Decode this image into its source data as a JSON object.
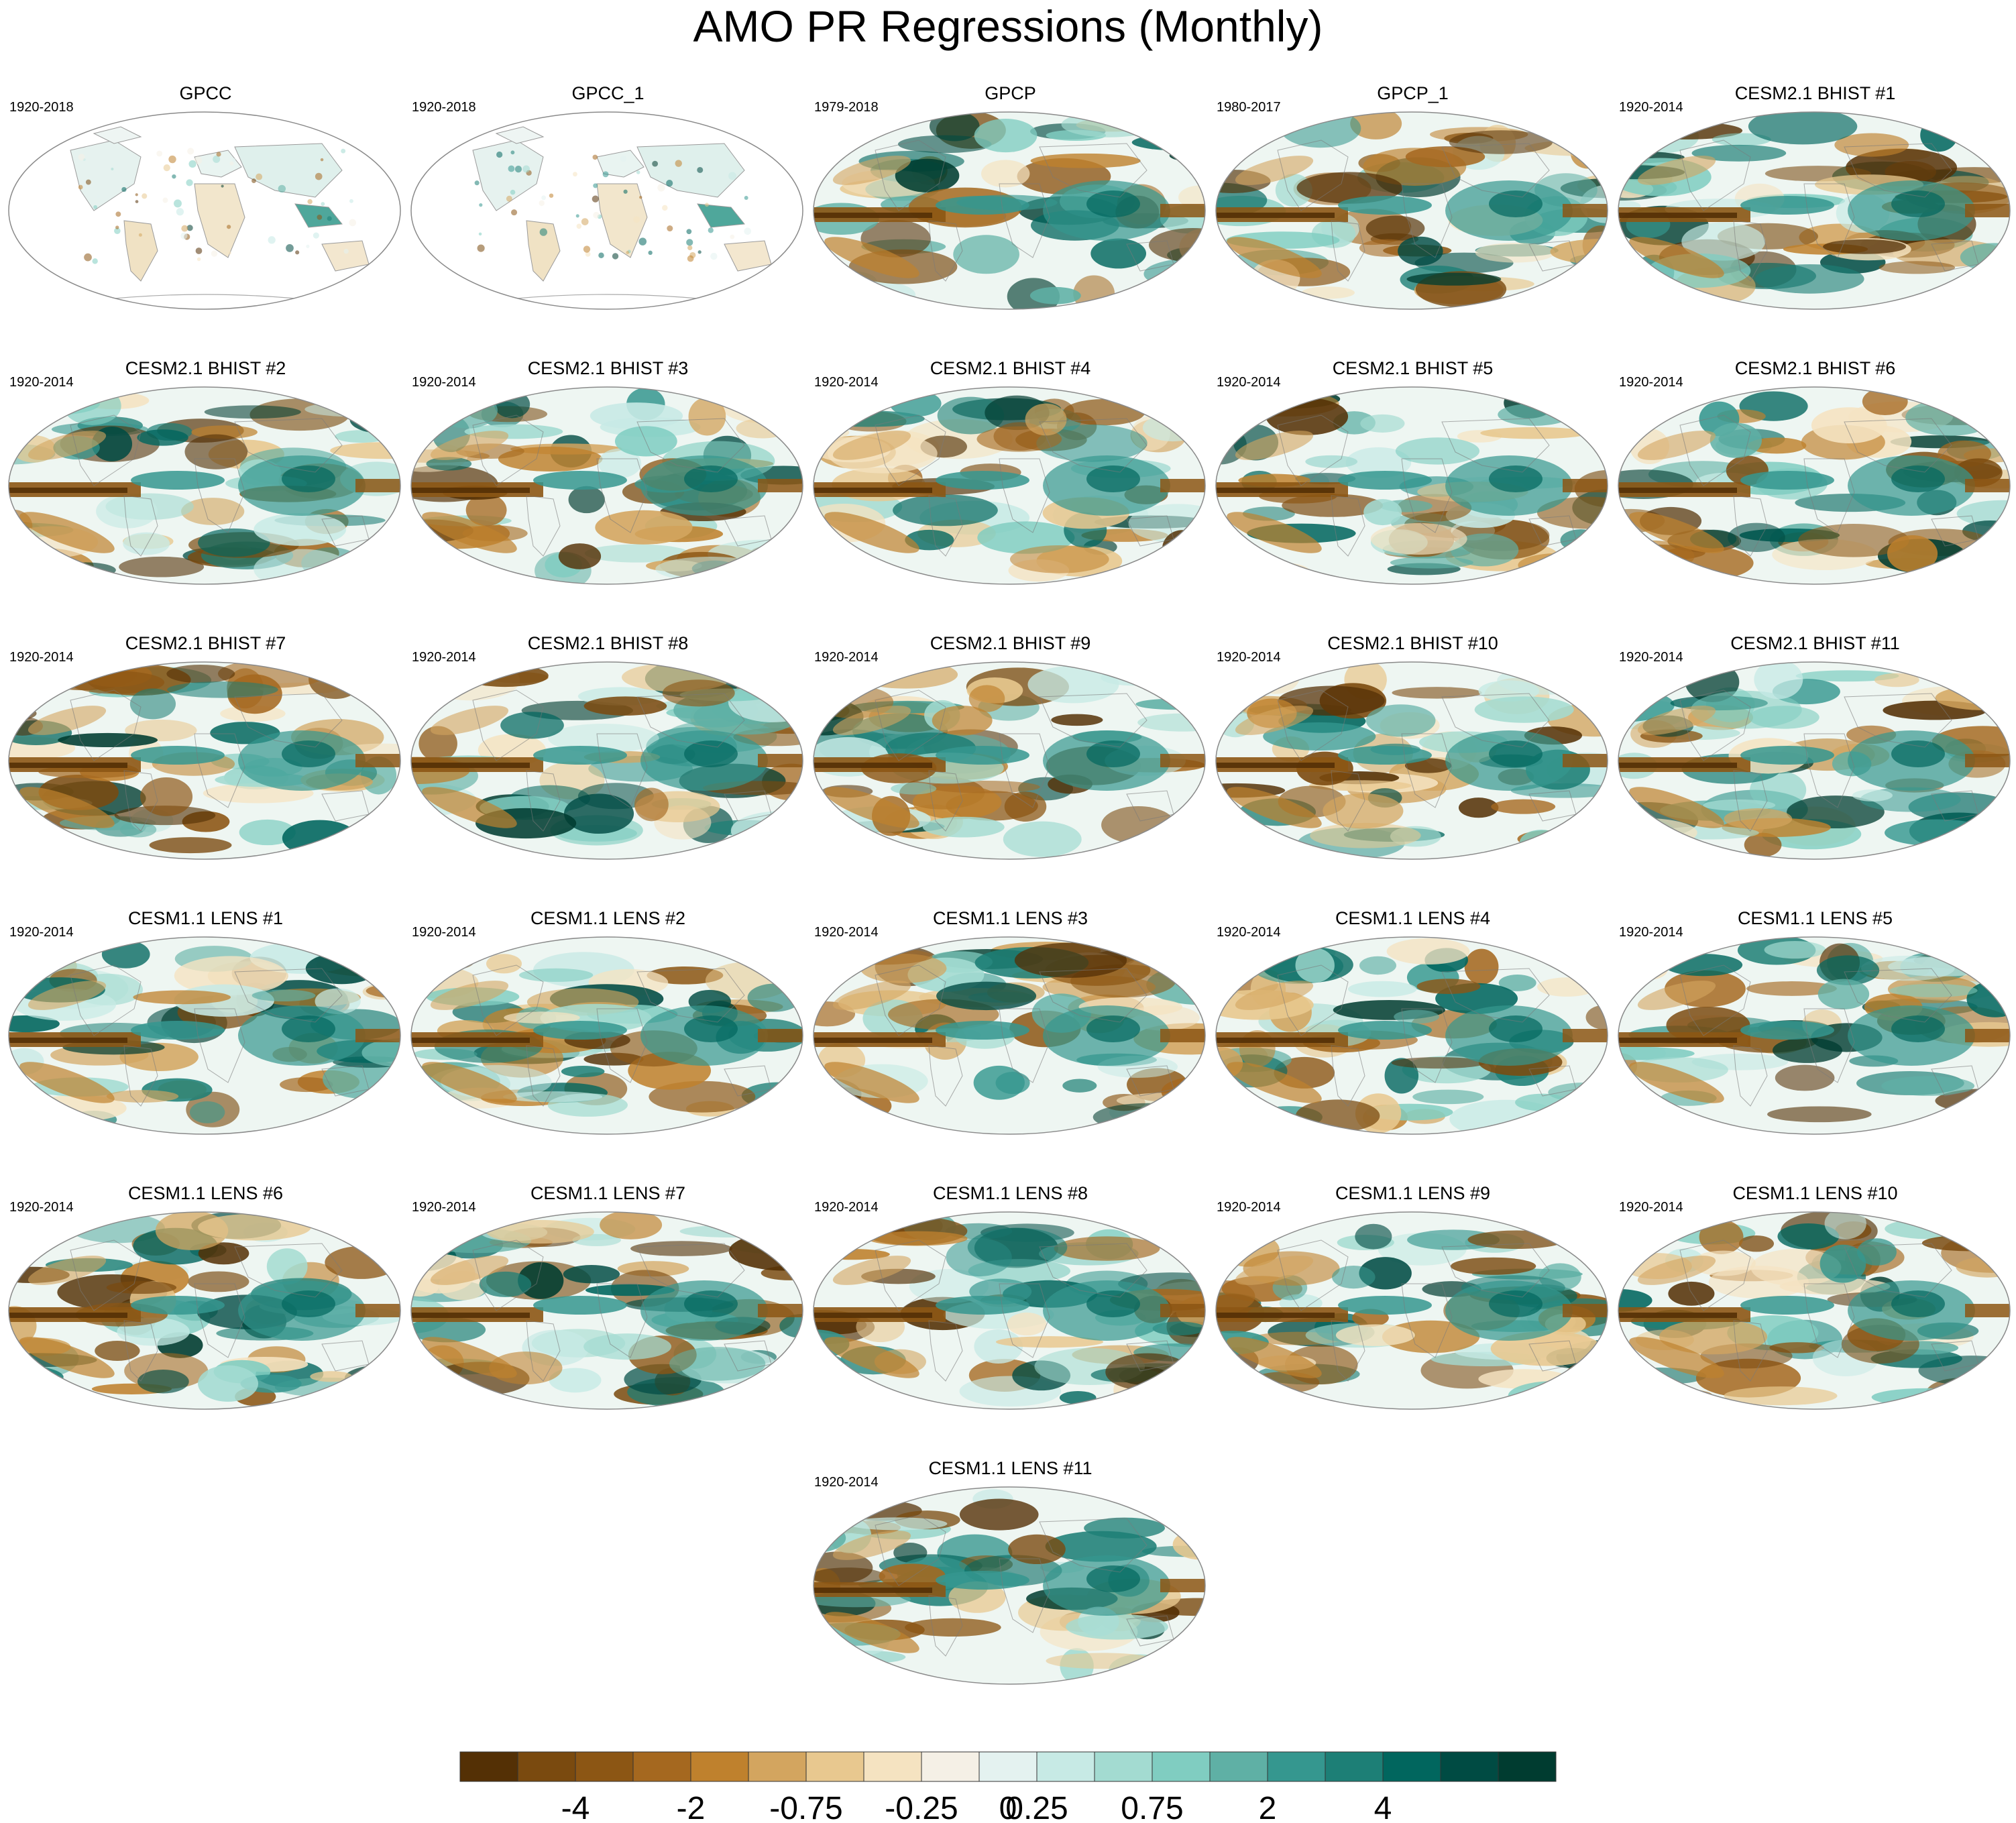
{
  "title": "AMO PR Regressions (Monthly)",
  "panels": [
    {
      "title": "GPCC",
      "years": "1920-2018",
      "variant": "land"
    },
    {
      "title": "GPCC_1",
      "years": "1920-2018",
      "variant": "land"
    },
    {
      "title": "GPCP",
      "years": "1979-2018",
      "variant": "obs"
    },
    {
      "title": "GPCP_1",
      "years": "1980-2017",
      "variant": "obs"
    },
    {
      "title": "CESM2.1 BHIST #1",
      "years": "1920-2014",
      "variant": "model"
    },
    {
      "title": "CESM2.1 BHIST #2",
      "years": "1920-2014",
      "variant": "model"
    },
    {
      "title": "CESM2.1 BHIST #3",
      "years": "1920-2014",
      "variant": "model"
    },
    {
      "title": "CESM2.1 BHIST #4",
      "years": "1920-2014",
      "variant": "model"
    },
    {
      "title": "CESM2.1 BHIST #5",
      "years": "1920-2014",
      "variant": "model"
    },
    {
      "title": "CESM2.1 BHIST #6",
      "years": "1920-2014",
      "variant": "model"
    },
    {
      "title": "CESM2.1 BHIST #7",
      "years": "1920-2014",
      "variant": "model"
    },
    {
      "title": "CESM2.1 BHIST #8",
      "years": "1920-2014",
      "variant": "model"
    },
    {
      "title": "CESM2.1 BHIST #9",
      "years": "1920-2014",
      "variant": "model"
    },
    {
      "title": "CESM2.1 BHIST #10",
      "years": "1920-2014",
      "variant": "model"
    },
    {
      "title": "CESM2.1 BHIST #11",
      "years": "1920-2014",
      "variant": "model"
    },
    {
      "title": "CESM1.1 LENS #1",
      "years": "1920-2014",
      "variant": "model"
    },
    {
      "title": "CESM1.1 LENS #2",
      "years": "1920-2014",
      "variant": "model"
    },
    {
      "title": "CESM1.1 LENS #3",
      "years": "1920-2014",
      "variant": "model"
    },
    {
      "title": "CESM1.1 LENS #4",
      "years": "1920-2014",
      "variant": "model"
    },
    {
      "title": "CESM1.1 LENS #5",
      "years": "1920-2014",
      "variant": "model"
    },
    {
      "title": "CESM1.1 LENS #6",
      "years": "1920-2014",
      "variant": "model"
    },
    {
      "title": "CESM1.1 LENS #7",
      "years": "1920-2014",
      "variant": "model"
    },
    {
      "title": "CESM1.1 LENS #8",
      "years": "1920-2014",
      "variant": "model"
    },
    {
      "title": "CESM1.1 LENS #9",
      "years": "1920-2014",
      "variant": "model"
    },
    {
      "title": "CESM1.1 LENS #10",
      "years": "1920-2014",
      "variant": "model"
    },
    {
      "title": "CESM1.1 LENS #11",
      "years": "1920-2014",
      "variant": "model"
    }
  ],
  "chart_data": {
    "type": "heatmap",
    "title": "AMO PR Regressions (Monthly)",
    "projection": "Robinson (global)",
    "colorbar": {
      "colors": [
        "#543005",
        "#7a4a0f",
        "#8c5614",
        "#a5681f",
        "#bf812d",
        "#d3a55f",
        "#e8c88f",
        "#f5e3c1",
        "#f5f0e6",
        "#e4f2f0",
        "#c7eae5",
        "#a3dbd1",
        "#80cdc1",
        "#5fb0a5",
        "#35978f",
        "#1d7f76",
        "#01665e",
        "#004b43",
        "#003c30"
      ],
      "tick_labels": [
        "-4",
        "-2",
        "-0.75",
        "-0.25",
        "0",
        "0.25",
        "0.75",
        "2",
        "4"
      ],
      "tick_positions_index": [
        2,
        4,
        6,
        8,
        9,
        10,
        12,
        14,
        16
      ],
      "orientation": "horizontal",
      "placement": "bottom"
    }
  }
}
